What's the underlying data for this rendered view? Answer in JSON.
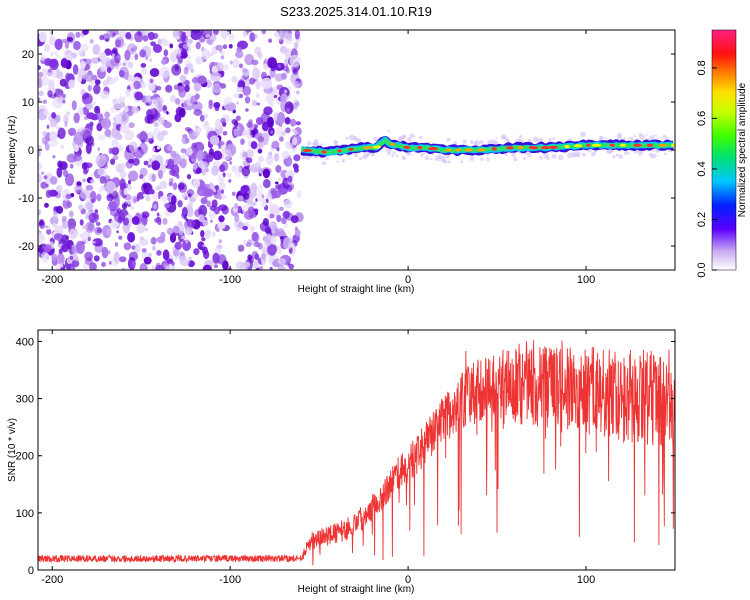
{
  "title": "S233.2025.314.01.10.R19",
  "chart_data": [
    {
      "type": "heatmap",
      "xlabel": "Height of straight line (km)",
      "ylabel": "Frequency (Hz)",
      "xlim": [
        -208,
        150
      ],
      "ylim": [
        -25,
        25
      ],
      "xticks": [
        -200,
        -100,
        0,
        100
      ],
      "yticks": [
        -20,
        -10,
        0,
        10,
        20
      ],
      "signal_onset_km": -60,
      "noise_region": [
        -208,
        -61
      ],
      "carrier_trace": {
        "x": [
          -60,
          -45,
          -35,
          -25,
          -18,
          -13,
          -8,
          0,
          10,
          20,
          40,
          60,
          80,
          100,
          120,
          150
        ],
        "y": [
          0,
          -0.5,
          0,
          0.5,
          0.5,
          2,
          1,
          0.5,
          0.5,
          0,
          0,
          0.5,
          0.5,
          1,
          1,
          1
        ]
      },
      "colorbar": {
        "label": "Normalized spectral amplitude",
        "range": [
          0,
          0.95
        ],
        "ticks": [
          "0.0",
          "0.2",
          "0.4",
          "0.6",
          "0.8"
        ]
      }
    },
    {
      "type": "line",
      "xlabel": "Height of straight line (km)",
      "ylabel": "SNR (10 * v/v)",
      "xlim": [
        -208,
        150
      ],
      "ylim": [
        0,
        420
      ],
      "xticks": [
        -200,
        -100,
        0,
        100
      ],
      "yticks": [
        0,
        100,
        200,
        300,
        400
      ],
      "color": "#ee3333",
      "envelope": {
        "x": [
          -208,
          -60,
          -55,
          -45,
          -35,
          -25,
          -15,
          -5,
          5,
          15,
          25,
          35,
          50,
          70,
          90,
          110,
          130,
          150
        ],
        "mean": [
          20,
          20,
          50,
          60,
          70,
          95,
          130,
          170,
          200,
          245,
          280,
          310,
          320,
          320,
          320,
          310,
          300,
          300
        ],
        "spread": [
          12,
          12,
          30,
          35,
          40,
          45,
          55,
          60,
          70,
          80,
          90,
          110,
          130,
          140,
          150,
          160,
          170,
          180
        ]
      }
    }
  ]
}
